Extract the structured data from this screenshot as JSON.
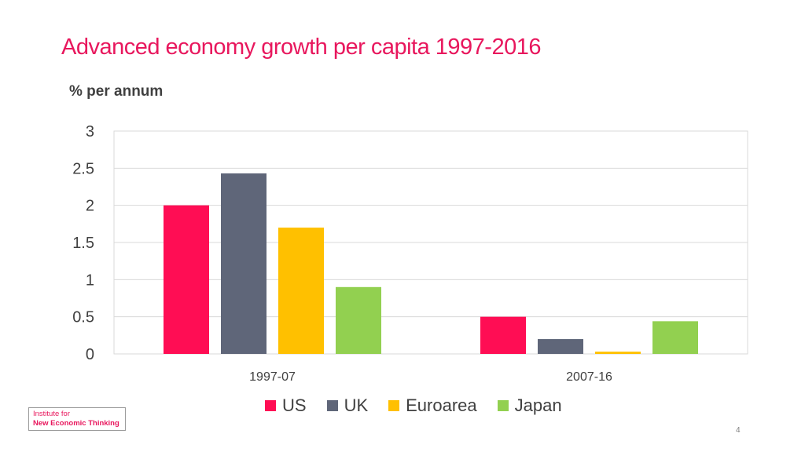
{
  "slide": {
    "title": "Advanced economy growth per capita 1997-2016",
    "subtitle": "% per annum",
    "page_number": "4",
    "logo": {
      "line1": "Institute for",
      "line2": "New Economic Thinking"
    }
  },
  "chart_data": {
    "type": "bar",
    "title": "Advanced economy growth per capita 1997-2016",
    "ylabel": "% per annum",
    "xlabel": "",
    "categories": [
      "1997-07",
      "2007-16"
    ],
    "series": [
      {
        "name": "US",
        "color": "#ff0d54",
        "values": [
          2.0,
          0.5
        ]
      },
      {
        "name": "UK",
        "color": "#5f6679",
        "values": [
          2.43,
          0.2
        ]
      },
      {
        "name": "Euroarea",
        "color": "#ffc000",
        "values": [
          1.7,
          0.03
        ]
      },
      {
        "name": "Japan",
        "color": "#92d050",
        "values": [
          0.9,
          0.44
        ]
      }
    ],
    "ylim": [
      0,
      3
    ],
    "yticks": [
      "0",
      "0.5",
      "1",
      "1.5",
      "2",
      "2.5",
      "3"
    ],
    "grid": true,
    "legend_position": "bottom"
  }
}
